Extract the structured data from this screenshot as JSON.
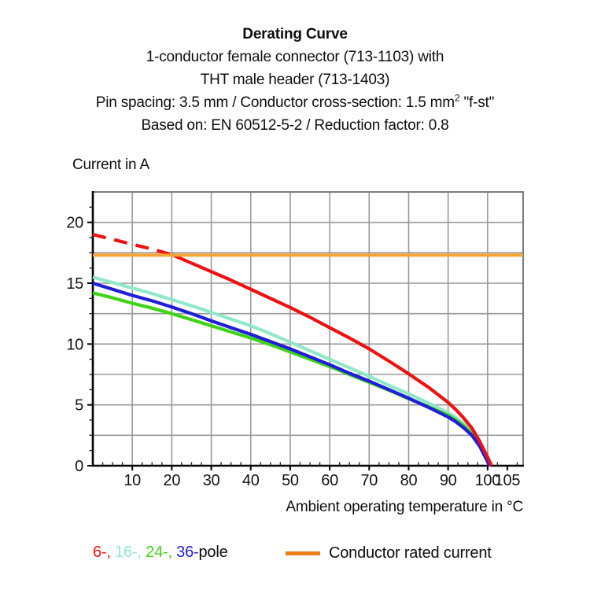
{
  "header": {
    "title": "Derating Curve",
    "subtitle1": "1-conductor female connector (713-1103) with",
    "subtitle2": "THT male header (713-1403)",
    "specs_pre": "Pin spacing: 3.5 mm / Conductor cross-section: 1.5 mm",
    "specs_sup": "2",
    "specs_post": " \"f-st\"",
    "basis": "Based on: EN 60512-5-2 / Reduction factor: 0.8"
  },
  "chart": {
    "y_title": "Current in A",
    "x_title": "Ambient operating temperature in °C",
    "gridline_color": "#999999",
    "frame_color": "#7a7a7a",
    "axis_color": "#000000",
    "tick_label_color": "#141414"
  },
  "chart_data": {
    "type": "line",
    "title": "Derating Curve",
    "xlabel": "Ambient operating temperature in °C",
    "ylabel": "Current in A",
    "xlim": [
      0,
      109
    ],
    "ylim": [
      0,
      22.5
    ],
    "grid": true,
    "x_gridlines": [
      10,
      20,
      30,
      40,
      50,
      60,
      70,
      80,
      90,
      100
    ],
    "y_gridlines": [
      2.5,
      5,
      7.5,
      10,
      12.5,
      15,
      17.5,
      20
    ],
    "x_major_ticks": [
      10,
      20,
      30,
      40,
      50,
      60,
      70,
      80,
      90,
      100,
      105
    ],
    "y_major_ticks": [
      0,
      5,
      10,
      15,
      20
    ],
    "series": [
      {
        "name": "16-pole",
        "color": "#8fe9c8",
        "points": [
          [
            0,
            15.5
          ],
          [
            5,
            15.05
          ],
          [
            10,
            14.6
          ],
          [
            15,
            14.15
          ],
          [
            20,
            13.65
          ],
          [
            25,
            13.15
          ],
          [
            30,
            12.6
          ],
          [
            35,
            12.05
          ],
          [
            40,
            11.5
          ],
          [
            45,
            10.85
          ],
          [
            50,
            10.15
          ],
          [
            55,
            9.45
          ],
          [
            60,
            8.75
          ],
          [
            65,
            8.05
          ],
          [
            70,
            7.35
          ],
          [
            75,
            6.6
          ],
          [
            80,
            5.9
          ],
          [
            85,
            5.15
          ],
          [
            90,
            4.35
          ],
          [
            92,
            3.95
          ],
          [
            94,
            3.45
          ],
          [
            96,
            2.8
          ],
          [
            98,
            1.9
          ],
          [
            100,
            0.7
          ],
          [
            100.8,
            0
          ]
        ]
      },
      {
        "name": "24-pole",
        "color": "#3ed414",
        "points": [
          [
            0,
            14.2
          ],
          [
            5,
            13.8
          ],
          [
            10,
            13.35
          ],
          [
            15,
            12.95
          ],
          [
            20,
            12.5
          ],
          [
            25,
            12.0
          ],
          [
            30,
            11.5
          ],
          [
            35,
            11.0
          ],
          [
            40,
            10.5
          ],
          [
            45,
            9.95
          ],
          [
            50,
            9.35
          ],
          [
            55,
            8.75
          ],
          [
            60,
            8.15
          ],
          [
            65,
            7.5
          ],
          [
            70,
            6.85
          ],
          [
            75,
            6.2
          ],
          [
            80,
            5.5
          ],
          [
            85,
            4.85
          ],
          [
            90,
            4.15
          ],
          [
            92,
            3.75
          ],
          [
            94,
            3.25
          ],
          [
            96,
            2.65
          ],
          [
            98,
            1.75
          ],
          [
            100,
            0.55
          ],
          [
            100.6,
            0
          ]
        ]
      },
      {
        "name": "36-pole",
        "color": "#1e1edb",
        "points": [
          [
            0,
            15.0
          ],
          [
            5,
            14.5
          ],
          [
            10,
            14.0
          ],
          [
            15,
            13.55
          ],
          [
            20,
            13.05
          ],
          [
            25,
            12.5
          ],
          [
            30,
            11.9
          ],
          [
            35,
            11.35
          ],
          [
            40,
            10.8
          ],
          [
            45,
            10.2
          ],
          [
            50,
            9.6
          ],
          [
            55,
            8.95
          ],
          [
            60,
            8.3
          ],
          [
            65,
            7.6
          ],
          [
            70,
            6.95
          ],
          [
            75,
            6.25
          ],
          [
            80,
            5.55
          ],
          [
            85,
            4.8
          ],
          [
            90,
            4.0
          ],
          [
            92,
            3.6
          ],
          [
            94,
            3.1
          ],
          [
            96,
            2.5
          ],
          [
            98,
            1.6
          ],
          [
            100,
            0.35
          ],
          [
            100.4,
            0
          ]
        ]
      },
      {
        "name": "6-pole",
        "color": "#ee1111",
        "dash_split_x": 20,
        "points": [
          [
            0,
            19.0
          ],
          [
            5,
            18.6
          ],
          [
            10,
            18.2
          ],
          [
            15,
            17.8
          ],
          [
            20,
            17.35
          ],
          [
            25,
            16.65
          ],
          [
            30,
            15.95
          ],
          [
            35,
            15.25
          ],
          [
            40,
            14.5
          ],
          [
            45,
            13.75
          ],
          [
            50,
            13.0
          ],
          [
            55,
            12.2
          ],
          [
            60,
            11.35
          ],
          [
            65,
            10.5
          ],
          [
            70,
            9.6
          ],
          [
            75,
            8.6
          ],
          [
            80,
            7.55
          ],
          [
            85,
            6.45
          ],
          [
            88,
            5.7
          ],
          [
            90,
            5.2
          ],
          [
            92,
            4.6
          ],
          [
            94,
            3.9
          ],
          [
            96,
            3.1
          ],
          [
            98,
            2.0
          ],
          [
            100,
            0.7
          ],
          [
            101,
            0
          ]
        ]
      },
      {
        "name": "Conductor rated current",
        "type": "hline",
        "color": "#f6a432",
        "y": 17.3
      }
    ],
    "legend_position": "bottom"
  },
  "legend": {
    "poles": [
      {
        "text": "6-, ",
        "color": "#ee1111"
      },
      {
        "text": "16-, ",
        "color": "#8fe9c8"
      },
      {
        "text": "24-, ",
        "color": "#3ed414"
      },
      {
        "text": "36-",
        "color": "#1e1edb"
      },
      {
        "text": "pole",
        "color": "#0d0d0d"
      }
    ],
    "rated_label": "Conductor rated current",
    "rated_color": "#ee7d17"
  }
}
